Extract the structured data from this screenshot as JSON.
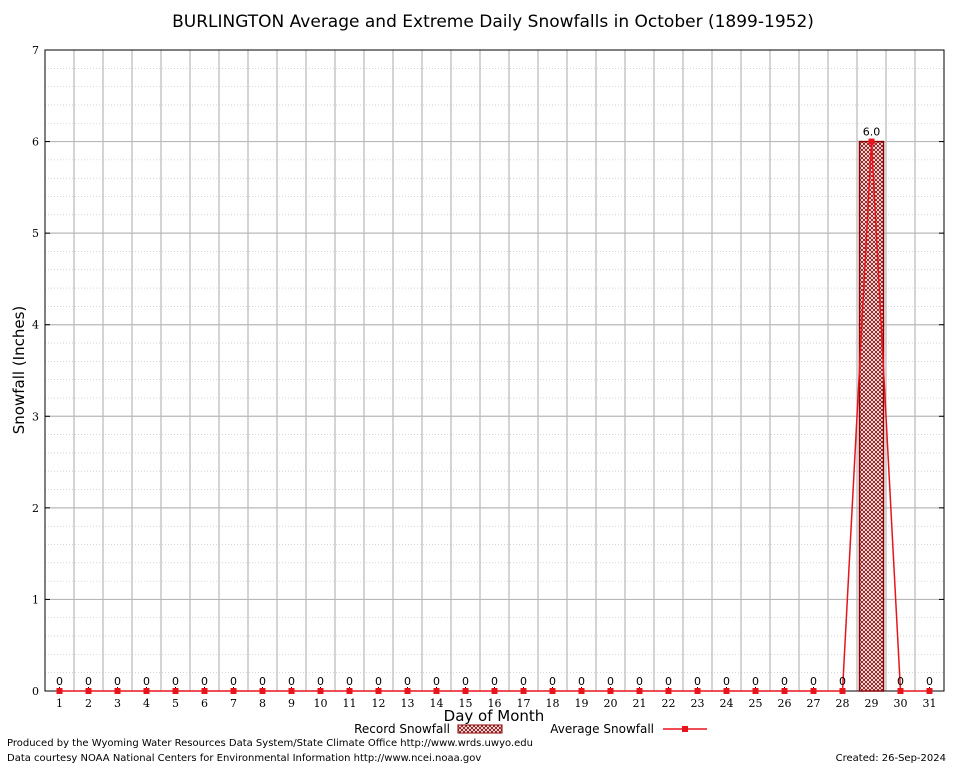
{
  "chart_data": {
    "type": "bar+line",
    "title": "BURLINGTON Average and Extreme Daily Snowfalls in October (1899-1952)",
    "xlabel": "Day of Month",
    "ylabel": "Snowfall (Inches)",
    "ylim": [
      0,
      7
    ],
    "yticks": [
      "0",
      "1",
      "2",
      "3",
      "4",
      "5",
      "6",
      "7"
    ],
    "categories": [
      "1",
      "2",
      "3",
      "4",
      "5",
      "6",
      "7",
      "8",
      "9",
      "10",
      "11",
      "12",
      "13",
      "14",
      "15",
      "16",
      "17",
      "18",
      "19",
      "20",
      "21",
      "22",
      "23",
      "24",
      "25",
      "26",
      "27",
      "28",
      "29",
      "30",
      "31"
    ],
    "series": [
      {
        "name": "Record Snowfall",
        "kind": "bar",
        "color": "#8b0000",
        "values": [
          0,
          0,
          0,
          0,
          0,
          0,
          0,
          0,
          0,
          0,
          0,
          0,
          0,
          0,
          0,
          0,
          0,
          0,
          0,
          0,
          0,
          0,
          0,
          0,
          0,
          0,
          0,
          0,
          6.0,
          0,
          0
        ],
        "labels": [
          "0",
          "0",
          "0",
          "0",
          "0",
          "0",
          "0",
          "0",
          "0",
          "0",
          "0",
          "0",
          "0",
          "0",
          "0",
          "0",
          "0",
          "0",
          "0",
          "0",
          "0",
          "0",
          "0",
          "0",
          "0",
          "0",
          "0",
          "0",
          "6.0",
          "0",
          "0"
        ]
      },
      {
        "name": "Average Snowfall",
        "kind": "line",
        "color": "#e8141c",
        "values": [
          0,
          0,
          0,
          0,
          0,
          0,
          0,
          0,
          0,
          0,
          0,
          0,
          0,
          0,
          0,
          0,
          0,
          0,
          0,
          0,
          0,
          0,
          0,
          0,
          0,
          0,
          0,
          0,
          6.0,
          0,
          0
        ]
      }
    ],
    "grid": true,
    "legend_position": "bottom-center"
  },
  "footer": {
    "produced_by": "Produced by the Wyoming Water Resources Data System/State Climate Office http://www.wrds.uwyo.edu",
    "data_courtesy": "Data courtesy NOAA National Centers for Environmental Information http://www.ncei.noaa.gov",
    "created": "Created: 26-Sep-2024"
  }
}
